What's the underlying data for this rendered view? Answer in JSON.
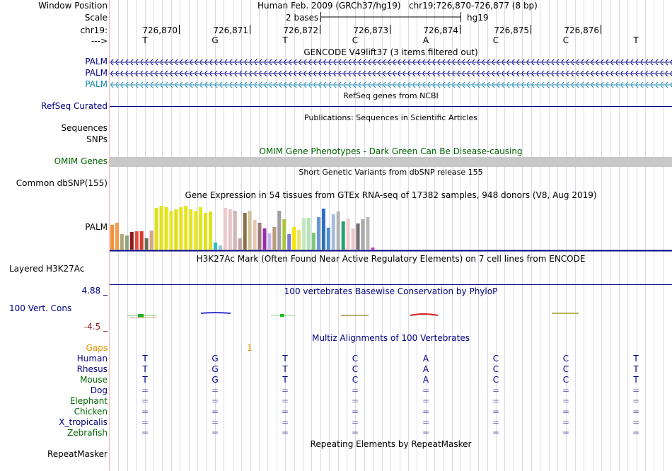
{
  "labels": {
    "window_position": "Window Position",
    "scale": "Scale",
    "chrom": "chr19:",
    "strand": "--->",
    "gencode_1": "PALM",
    "gencode_2": "PALM",
    "gencode_3": "PALM",
    "refseq": "RefSeq Curated",
    "sequences": "Sequences",
    "snps": "SNPs",
    "omim": "OMIM Genes",
    "dbsnp": "Common dbSNP(155)",
    "gtex": "PALM",
    "h3k27ac": "Layered H3K27Ac",
    "cons_max": "4.88 _",
    "cons": "100 Vert. Cons",
    "cons_min": "-4.5 _",
    "gaps": "Gaps",
    "repeatmasker": "RepeatMasker"
  },
  "header": {
    "assembly": "Human Feb. 2009 (GRCh37/hg19)",
    "position": "chr19:726,870-726,877 (8 bp)",
    "scale_label": "2 bases",
    "scale_db": "hg19"
  },
  "ruler": {
    "positions": [
      "726,870",
      "726,871",
      "726,872",
      "726,873",
      "726,874",
      "726,875",
      "726,876"
    ]
  },
  "sequence": {
    "bases": [
      "T",
      "G",
      "T",
      "C",
      "A",
      "C",
      "C",
      "T"
    ]
  },
  "track_titles": {
    "gencode": "GENCODE V49lift37 (3 items filtered out)",
    "refseq": "RefSeq genes from NCBI",
    "publications": "Publications: Sequences in Scientific Articles",
    "omim": "OMIM Gene Phenotypes - Dark Green Can Be Disease-causing",
    "dbsnp": "Short Genetic Variants from dbSNP release 155",
    "gtex": "Gene Expression in 54 tissues from GTEx RNA-seq of 17382 samples, 948 donors (V8, Aug 2019)",
    "h3k27ac": "H3K27Ac Mark (Often Found Near Active Regulatory Elements) on 7 cell lines from ENCODE",
    "phylop": "100 vertebrates Basewise Conservation by PhyloP",
    "multiz": "Multiz Alignments of 100 Vertebrates",
    "repeatmasker": "Repeating Elements by RepeatMasker"
  },
  "gaps_value": "1",
  "multiz": {
    "species": [
      {
        "name": "Human",
        "bases": [
          "T",
          "G",
          "T",
          "C",
          "A",
          "C",
          "C",
          "T"
        ]
      },
      {
        "name": "Rhesus",
        "bases": [
          "T",
          "G",
          "T",
          "C",
          "A",
          "C",
          "C",
          "T"
        ]
      },
      {
        "name": "Mouse",
        "bases": [
          "T",
          "G",
          "T",
          "C",
          "A",
          "C",
          "C",
          "T"
        ]
      },
      {
        "name": "Dog",
        "bases": [
          "=",
          "=",
          "=",
          "=",
          "=",
          "=",
          "=",
          "="
        ]
      },
      {
        "name": "Elephant",
        "bases": [
          "=",
          "=",
          "=",
          "=",
          "=",
          "=",
          "=",
          "="
        ]
      },
      {
        "name": "Chicken",
        "bases": [
          "=",
          "=",
          "=",
          "=",
          "=",
          "=",
          "=",
          "="
        ]
      },
      {
        "name": "X_tropicalis",
        "bases": [
          "=",
          "=",
          "=",
          "=",
          "=",
          "=",
          "=",
          "="
        ]
      },
      {
        "name": "Zebrafish",
        "bases": [
          "=",
          "=",
          "=",
          "=",
          "=",
          "=",
          "=",
          "="
        ]
      }
    ]
  },
  "colors": {
    "navy": "#000080",
    "dark_green": "#006400",
    "gencode3": "#1585ac",
    "gaps": "#e69500",
    "cons_min": "#8b1a1a",
    "omim_bar": "#c8c8c8",
    "grid": "#d9d9ea"
  },
  "chart_data": {
    "type": "bar",
    "title": "Gene Expression in 54 tissues from GTEx RNA-seq of 17382 samples, 948 donors (V8, Aug 2019)",
    "ylim": [
      0,
      70
    ],
    "values": [
      35,
      38,
      22,
      20,
      25,
      26,
      26,
      16,
      27,
      59,
      62,
      60,
      55,
      57,
      60,
      62,
      57,
      55,
      60,
      52,
      54,
      10,
      6,
      59,
      57,
      55,
      16,
      52,
      55,
      42,
      38,
      30,
      23,
      32,
      55,
      43,
      22,
      32,
      28,
      45,
      45,
      24,
      46,
      58,
      31,
      50,
      54,
      40,
      44,
      30,
      37,
      43,
      46,
      3
    ],
    "colors": [
      "#f38f36",
      "#f39c4e",
      "#b0a777",
      "#8ea37b",
      "#8b1a1a",
      "#e84d3b",
      "#d23c2a",
      "#6a6c52",
      "#d5a684",
      "#e0e01a",
      "#e3e31a",
      "#e4e41b",
      "#e7e729",
      "#dede19",
      "#e3e31c",
      "#e5e51c",
      "#e4e41f",
      "#e8e821",
      "#e6e61e",
      "#e2e21d",
      "#e1e121",
      "#28c0c5",
      "#a1c3d6",
      "#ecc8c8",
      "#e8c4c4",
      "#d3b7b7",
      "#c2a4a4",
      "#8a6f47",
      "#d0c59a",
      "#e7c8b2",
      "#9c7b7b",
      "#9431a8",
      "#c8b2ea",
      "#b99c7a",
      "#a1a0a1",
      "#acc53e",
      "#7d7bd0",
      "#f5e300",
      "#e4e46f",
      "#c1e9c1",
      "#b0e5b0",
      "#7fc57f",
      "#6b98d5",
      "#2b6ec2",
      "#4f8dcf",
      "#a5bde0",
      "#b3b3b3",
      "#26a070",
      "#f0caca",
      "#ecc6c6",
      "#6d6d6d",
      "#a9a9a9",
      "#b8b8b8",
      "#c040c0"
    ]
  }
}
